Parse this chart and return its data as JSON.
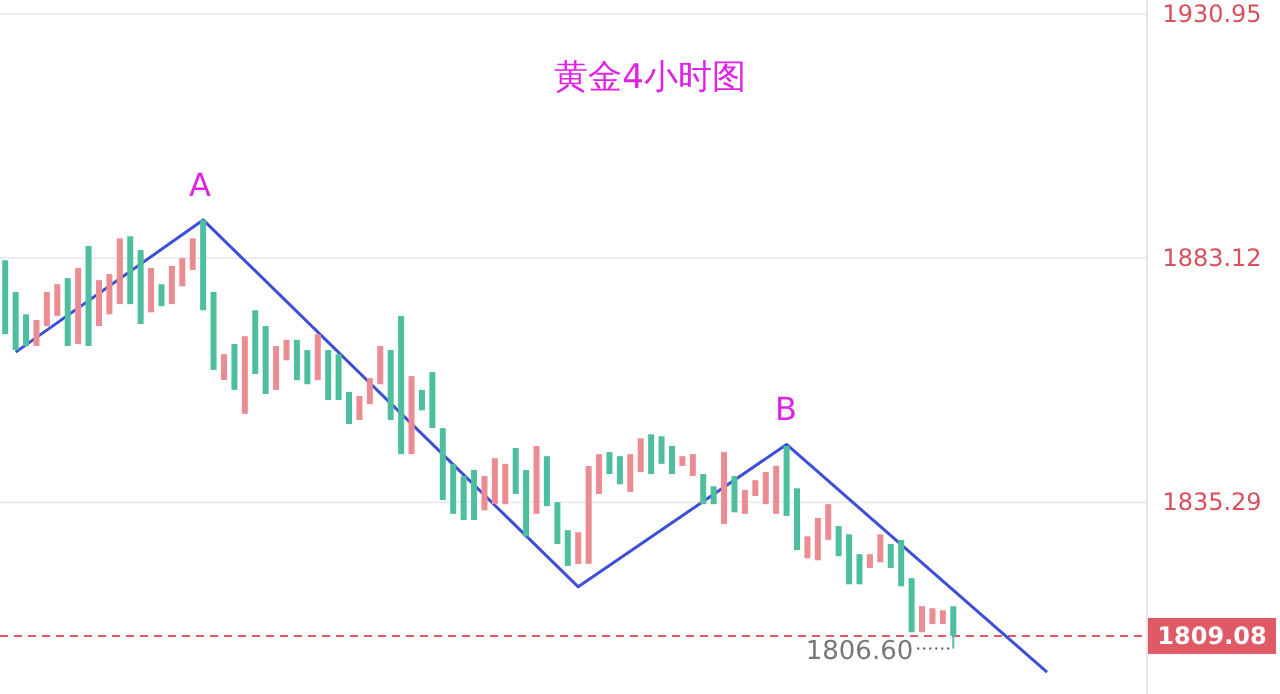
{
  "chart_data": {
    "type": "candlestick",
    "title": "黄金4小时图",
    "categories": [
      null,
      null,
      null,
      null,
      null,
      null,
      null,
      null,
      null,
      null,
      null,
      null,
      null,
      null,
      null,
      null,
      null,
      null,
      null,
      null,
      null,
      null,
      null,
      null,
      null,
      null,
      null,
      null,
      null,
      null,
      null,
      null,
      null,
      null,
      null,
      null,
      null,
      null,
      null,
      null,
      null,
      null,
      null,
      null,
      null,
      null,
      null,
      null,
      null,
      null,
      null,
      null,
      null,
      null,
      null,
      null,
      null,
      null,
      null,
      null,
      null,
      null,
      null,
      null,
      null,
      null,
      null,
      null,
      null,
      null,
      null,
      null,
      null,
      null,
      null,
      null,
      null,
      null,
      null,
      null,
      null,
      null,
      null,
      null,
      null,
      null,
      null,
      null,
      null,
      null,
      null,
      null,
      null,
      null,
      null,
      null,
      null,
      null,
      null,
      null,
      null,
      null,
      null,
      null,
      null,
      null,
      null,
      null,
      null,
      null
    ],
    "ohlc": [
      [
        1882.7,
        1882.7,
        1868.2,
        1868.2
      ],
      [
        1876.5,
        1876.5,
        1865.1,
        1865.1
      ],
      [
        1872.1,
        1872.1,
        1865.9,
        1865.9
      ],
      [
        1865.9,
        1871.0,
        1865.9,
        1871.0
      ],
      [
        1869.8,
        1876.5,
        1869.8,
        1876.5
      ],
      [
        1871.8,
        1878.0,
        1871.8,
        1878.0
      ],
      [
        1879.2,
        1879.2,
        1865.9,
        1865.9
      ],
      [
        1866.3,
        1881.2,
        1866.3,
        1881.2
      ],
      [
        1885.5,
        1885.5,
        1865.9,
        1865.9
      ],
      [
        1869.8,
        1878.8,
        1869.8,
        1878.8
      ],
      [
        1872.1,
        1880.0,
        1872.1,
        1880.0
      ],
      [
        1874.1,
        1887.0,
        1874.1,
        1887.0
      ],
      [
        1887.4,
        1887.4,
        1874.1,
        1874.1
      ],
      [
        1884.7,
        1884.7,
        1870.2,
        1870.2
      ],
      [
        1872.5,
        1881.2,
        1872.5,
        1881.2
      ],
      [
        1878.0,
        1878.0,
        1873.7,
        1873.7
      ],
      [
        1874.1,
        1881.6,
        1874.1,
        1881.6
      ],
      [
        1877.6,
        1883.1,
        1877.6,
        1883.1
      ],
      [
        1880.8,
        1887.0,
        1880.8,
        1887.0
      ],
      [
        1890.6,
        1890.6,
        1872.9,
        1872.9
      ],
      [
        1876.5,
        1876.5,
        1861.2,
        1861.2
      ],
      [
        1859.2,
        1864.3,
        1859.2,
        1864.3
      ],
      [
        1866.3,
        1866.3,
        1857.3,
        1857.3
      ],
      [
        1852.6,
        1867.8,
        1852.6,
        1867.8
      ],
      [
        1872.9,
        1872.9,
        1860.4,
        1860.4
      ],
      [
        1869.8,
        1869.8,
        1856.5,
        1856.5
      ],
      [
        1857.3,
        1865.9,
        1857.3,
        1865.9
      ],
      [
        1863.1,
        1867.1,
        1863.1,
        1867.1
      ],
      [
        1867.1,
        1867.1,
        1859.2,
        1859.2
      ],
      [
        1865.1,
        1865.1,
        1858.4,
        1858.4
      ],
      [
        1859.2,
        1868.2,
        1859.2,
        1868.2
      ],
      [
        1865.1,
        1865.1,
        1855.3,
        1855.3
      ],
      [
        1864.3,
        1864.3,
        1855.3,
        1855.3
      ],
      [
        1856.9,
        1856.9,
        1850.6,
        1850.6
      ],
      [
        1851.4,
        1856.1,
        1851.4,
        1856.1
      ],
      [
        1854.5,
        1859.6,
        1854.5,
        1859.6
      ],
      [
        1858.4,
        1865.9,
        1858.4,
        1865.9
      ],
      [
        1865.1,
        1865.1,
        1851.4,
        1851.4
      ],
      [
        1871.8,
        1871.8,
        1844.7,
        1844.7
      ],
      [
        1844.7,
        1860.0,
        1844.7,
        1860.0
      ],
      [
        1857.3,
        1857.3,
        1853.3,
        1853.3
      ],
      [
        1860.8,
        1860.8,
        1849.8,
        1849.8
      ],
      [
        1849.8,
        1849.8,
        1835.7,
        1835.7
      ],
      [
        1842.8,
        1842.8,
        1833.0,
        1833.0
      ],
      [
        1840.4,
        1840.4,
        1831.8,
        1831.8
      ],
      [
        1841.6,
        1841.6,
        1831.8,
        1831.8
      ],
      [
        1833.7,
        1840.4,
        1833.7,
        1840.4
      ],
      [
        1834.9,
        1843.9,
        1834.9,
        1843.9
      ],
      [
        1834.9,
        1842.8,
        1834.9,
        1842.8
      ],
      [
        1845.9,
        1845.9,
        1836.9,
        1836.9
      ],
      [
        1841.6,
        1841.6,
        1828.6,
        1828.6
      ],
      [
        1833.0,
        1846.3,
        1833.0,
        1846.3
      ],
      [
        1844.3,
        1844.3,
        1834.5,
        1834.5
      ],
      [
        1835.3,
        1835.3,
        1827.1,
        1827.1
      ],
      [
        1829.8,
        1829.8,
        1822.8,
        1822.8
      ],
      [
        1823.2,
        1829.4,
        1823.2,
        1829.4
      ],
      [
        1823.2,
        1842.4,
        1823.2,
        1842.4
      ],
      [
        1836.9,
        1844.7,
        1836.9,
        1844.7
      ],
      [
        1845.1,
        1845.1,
        1840.8,
        1840.8
      ],
      [
        1844.3,
        1844.3,
        1838.8,
        1838.8
      ],
      [
        1837.3,
        1844.7,
        1837.3,
        1844.7
      ],
      [
        1841.2,
        1847.8,
        1841.2,
        1847.8
      ],
      [
        1848.6,
        1848.6,
        1840.8,
        1840.8
      ],
      [
        1848.2,
        1848.2,
        1842.8,
        1842.8
      ],
      [
        1846.3,
        1846.3,
        1840.8,
        1840.8
      ],
      [
        1842.4,
        1844.3,
        1842.4,
        1844.3
      ],
      [
        1840.4,
        1844.7,
        1840.4,
        1844.7
      ],
      [
        1840.8,
        1840.8,
        1834.9,
        1834.9
      ],
      [
        1838.4,
        1838.4,
        1834.9,
        1834.9
      ],
      [
        1831.0,
        1845.1,
        1831.0,
        1845.1
      ],
      [
        1840.4,
        1840.4,
        1833.3,
        1833.3
      ],
      [
        1833.0,
        1837.7,
        1833.0,
        1837.7
      ],
      [
        1836.5,
        1839.6,
        1836.5,
        1839.6
      ],
      [
        1834.9,
        1841.2,
        1834.9,
        1841.2
      ],
      [
        1833.0,
        1842.4,
        1833.0,
        1842.4
      ],
      [
        1846.3,
        1846.3,
        1832.6,
        1832.6
      ],
      [
        1838.0,
        1838.0,
        1825.9,
        1825.9
      ],
      [
        1824.3,
        1828.6,
        1824.3,
        1828.6
      ],
      [
        1823.9,
        1832.2,
        1823.9,
        1832.2
      ],
      [
        1827.9,
        1834.9,
        1827.9,
        1834.9
      ],
      [
        1830.6,
        1830.6,
        1824.7,
        1824.7
      ],
      [
        1829.0,
        1829.0,
        1819.2,
        1819.2
      ],
      [
        1825.1,
        1825.1,
        1819.2,
        1819.2
      ],
      [
        1822.4,
        1825.1,
        1822.4,
        1825.1
      ],
      [
        1823.5,
        1829.0,
        1823.5,
        1829.0
      ],
      [
        1827.1,
        1827.1,
        1822.4,
        1822.4
      ],
      [
        1827.9,
        1827.9,
        1818.8,
        1818.8
      ],
      [
        1820.4,
        1820.4,
        1809.8,
        1809.8
      ],
      [
        1809.8,
        1814.9,
        1809.8,
        1814.9
      ],
      [
        1811.4,
        1814.5,
        1811.4,
        1814.5
      ],
      [
        1811.4,
        1814.1,
        1811.4,
        1814.1
      ],
      [
        1814.9,
        1814.9,
        1806.6,
        1809.08
      ],
      null,
      null,
      null,
      null,
      null,
      null,
      null,
      null,
      null,
      null,
      null,
      null,
      null,
      null,
      null,
      null,
      null,
      null
    ],
    "colors": [
      "#4dbf9f",
      "#4dbf9f",
      "#4dbf9f",
      "#eb8c92",
      "#eb8c92",
      "#eb8c92",
      "#4dbf9f",
      "#eb8c92",
      "#4dbf9f",
      "#eb8c92",
      "#eb8c92",
      "#eb8c92",
      "#4dbf9f",
      "#4dbf9f",
      "#eb8c92",
      "#4dbf9f",
      "#eb8c92",
      "#eb8c92",
      "#eb8c92",
      "#4dbf9f",
      "#4dbf9f",
      "#eb8c92",
      "#4dbf9f",
      "#eb8c92",
      "#4dbf9f",
      "#4dbf9f",
      "#eb8c92",
      "#eb8c92",
      "#4dbf9f",
      "#4dbf9f",
      "#eb8c92",
      "#4dbf9f",
      "#4dbf9f",
      "#4dbf9f",
      "#eb8c92",
      "#eb8c92",
      "#eb8c92",
      "#4dbf9f",
      "#4dbf9f",
      "#eb8c92",
      "#4dbf9f",
      "#4dbf9f",
      "#4dbf9f",
      "#4dbf9f",
      "#4dbf9f",
      "#4dbf9f",
      "#eb8c92",
      "#eb8c92",
      "#eb8c92",
      "#4dbf9f",
      "#4dbf9f",
      "#eb8c92",
      "#4dbf9f",
      "#4dbf9f",
      "#4dbf9f",
      "#eb8c92",
      "#eb8c92",
      "#eb8c92",
      "#4dbf9f",
      "#4dbf9f",
      "#eb8c92",
      "#eb8c92",
      "#4dbf9f",
      "#4dbf9f",
      "#4dbf9f",
      "#eb8c92",
      "#eb8c92",
      "#4dbf9f",
      "#4dbf9f",
      "#eb8c92",
      "#4dbf9f",
      "#eb8c92",
      "#eb8c92",
      "#eb8c92",
      "#eb8c92",
      "#4dbf9f",
      "#4dbf9f",
      "#eb8c92",
      "#eb8c92",
      "#eb8c92",
      "#4dbf9f",
      "#4dbf9f",
      "#4dbf9f",
      "#eb8c92",
      "#eb8c92",
      "#4dbf9f",
      "#4dbf9f",
      "#4dbf9f",
      "#eb8c92",
      "#eb8c92",
      "#eb8c92",
      "#4dbf9f",
      null,
      null,
      null,
      null,
      null,
      null,
      null,
      null,
      null,
      null,
      null,
      null,
      null,
      null,
      null,
      null,
      null,
      null
    ],
    "series": [
      {
        "type": "line",
        "color": "#3d4fd6",
        "values": [
          null,
          1864.7,
          null,
          null,
          null,
          null,
          null,
          null,
          null,
          null,
          null,
          null,
          null,
          null,
          null,
          null,
          null,
          null,
          null,
          1890.6,
          null,
          null,
          null,
          null,
          null,
          null,
          null,
          null,
          null,
          null,
          null,
          null,
          null,
          null,
          null,
          null,
          null,
          null,
          null,
          null,
          null,
          null,
          null,
          null,
          null,
          null,
          null,
          null,
          null,
          null,
          null,
          null,
          null,
          null,
          null,
          1818.7,
          null,
          null,
          null,
          null,
          null,
          null,
          null,
          null,
          null,
          null,
          null,
          null,
          null,
          null,
          null,
          null,
          null,
          null,
          null,
          1846.6,
          null,
          null,
          null,
          null,
          null,
          null,
          null,
          null,
          null,
          null,
          null,
          null,
          null,
          null,
          null,
          null,
          null,
          null,
          null,
          null,
          null,
          null,
          null,
          null,
          1802.0,
          null,
          null,
          null,
          null,
          null,
          null,
          null,
          null,
          null
        ]
      }
    ],
    "ylim": [
      1797.7,
      1933.7
    ],
    "yticks": [
      1930.95,
      1883.12,
      1835.29
    ],
    "grid": "y",
    "tick_labels": "y",
    "ref_lines": [
      {
        "axis": "y",
        "value": 1809.08,
        "label": "1809.08",
        "color": "#e05a66",
        "line_style": "dashed"
      }
    ],
    "annotations": [
      "A",
      "B",
      "1806.60"
    ]
  }
}
